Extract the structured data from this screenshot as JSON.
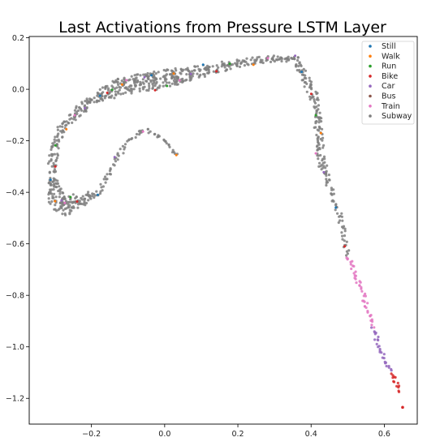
{
  "chart_data": {
    "type": "scatter",
    "title": "Last Activations from Pressure LSTM Layer",
    "xlabel": "",
    "ylabel": "",
    "xlim": [
      -0.37,
      0.69
    ],
    "ylim": [
      -1.3,
      0.205
    ],
    "x_ticks": [
      "−0.2",
      "0.0",
      "0.2",
      "0.4",
      "0.6"
    ],
    "x_tick_values": [
      -0.2,
      0.0,
      0.2,
      0.4,
      0.6
    ],
    "y_ticks": [
      "0.2",
      "0.0",
      "−0.2",
      "−0.4",
      "−0.6",
      "−0.8",
      "−1.0",
      "−1.2"
    ],
    "y_tick_values": [
      0.2,
      0.0,
      -0.2,
      -0.4,
      -0.6,
      -0.8,
      -1.0,
      -1.2
    ],
    "grid": false,
    "legend_position": "top-right",
    "series": [
      {
        "name": "Still",
        "color": "#1f77b4"
      },
      {
        "name": "Walk",
        "color": "#ff7f0e"
      },
      {
        "name": "Run",
        "color": "#2ca02c"
      },
      {
        "name": "Bike",
        "color": "#d62728"
      },
      {
        "name": "Car",
        "color": "#9467bd"
      },
      {
        "name": "Bus",
        "color": "#8c564b"
      },
      {
        "name": "Train",
        "color": "#e377c2"
      },
      {
        "name": "Subway",
        "color": "#7f7f7f"
      }
    ],
    "trajectory": [
      {
        "x": 0.03,
        "y": -0.255,
        "w": 0.006
      },
      {
        "x": 0.0,
        "y": -0.2,
        "w": 0.007
      },
      {
        "x": -0.05,
        "y": -0.155,
        "w": 0.008
      },
      {
        "x": -0.1,
        "y": -0.2,
        "w": 0.008
      },
      {
        "x": -0.14,
        "y": -0.29,
        "w": 0.008
      },
      {
        "x": -0.18,
        "y": -0.4,
        "w": 0.008
      },
      {
        "x": -0.25,
        "y": -0.44,
        "w": 0.03
      },
      {
        "x": -0.27,
        "y": -0.46,
        "w": 0.035
      },
      {
        "x": -0.3,
        "y": -0.42,
        "w": 0.028
      },
      {
        "x": -0.31,
        "y": -0.33,
        "w": 0.014
      },
      {
        "x": -0.3,
        "y": -0.22,
        "w": 0.014
      },
      {
        "x": -0.28,
        "y": -0.14,
        "w": 0.014
      },
      {
        "x": -0.24,
        "y": -0.09,
        "w": 0.016
      },
      {
        "x": -0.18,
        "y": -0.03,
        "w": 0.02
      },
      {
        "x": -0.12,
        "y": 0.01,
        "w": 0.028
      },
      {
        "x": -0.05,
        "y": 0.03,
        "w": 0.034
      },
      {
        "x": 0.02,
        "y": 0.05,
        "w": 0.03
      },
      {
        "x": 0.1,
        "y": 0.07,
        "w": 0.02
      },
      {
        "x": 0.2,
        "y": 0.1,
        "w": 0.014
      },
      {
        "x": 0.3,
        "y": 0.12,
        "w": 0.012
      },
      {
        "x": 0.36,
        "y": 0.12,
        "w": 0.01
      },
      {
        "x": 0.38,
        "y": 0.05,
        "w": 0.012
      },
      {
        "x": 0.41,
        "y": -0.03,
        "w": 0.014
      },
      {
        "x": 0.42,
        "y": -0.15,
        "w": 0.012
      },
      {
        "x": 0.43,
        "y": -0.29,
        "w": 0.012
      },
      {
        "x": 0.45,
        "y": -0.37,
        "w": 0.009
      },
      {
        "x": 0.48,
        "y": -0.5,
        "w": 0.008
      },
      {
        "x": 0.5,
        "y": -0.65,
        "w": 0.008
      },
      {
        "x": 0.53,
        "y": -0.75,
        "w": 0.007
      },
      {
        "x": 0.56,
        "y": -0.88,
        "w": 0.007
      },
      {
        "x": 0.59,
        "y": -1.02,
        "w": 0.007
      },
      {
        "x": 0.62,
        "y": -1.1,
        "w": 0.006
      },
      {
        "x": 0.645,
        "y": -1.18,
        "w": 0.005
      }
    ],
    "colored_segments": [
      {
        "series": "Train",
        "from": 0.5,
        "to": 0.57
      },
      {
        "series": "Car",
        "from": 0.57,
        "to": 0.62
      },
      {
        "series": "Bike",
        "from": 0.62,
        "to": 0.65
      }
    ],
    "outlier": {
      "x": 0.65,
      "y": -1.235,
      "series": "Bike"
    }
  }
}
